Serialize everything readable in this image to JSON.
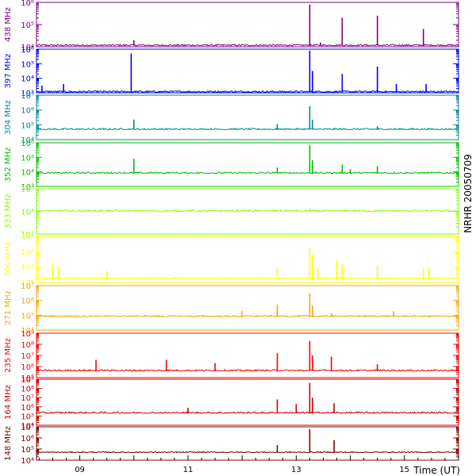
{
  "chart_data": {
    "type": "line",
    "side_label": "NRHR 20050709",
    "xlabel": "Time (UT)",
    "x_ticks": [
      "09",
      "11",
      "13",
      "15"
    ],
    "x_range_hours": [
      8.2,
      16.0
    ],
    "panels": [
      {
        "label": "438 MHz",
        "color": "#800080",
        "ylim_exp": [
          4,
          6
        ],
        "tick_labels": [
          "10⁴",
          "10⁵",
          "10⁶"
        ],
        "baseline_exp": 4.05,
        "spikes": [
          [
            13.25,
            5.9
          ],
          [
            13.85,
            5.3
          ],
          [
            14.5,
            5.4
          ],
          [
            15.35,
            4.8
          ],
          [
            10.0,
            4.3
          ],
          [
            13.45,
            4.2
          ]
        ]
      },
      {
        "label": "397 MHz",
        "color": "#0000ee",
        "ylim_exp": [
          3,
          6
        ],
        "tick_labels": [
          "10³",
          "10⁴",
          "10⁵",
          "10⁶"
        ],
        "baseline_exp": 3.05,
        "spikes": [
          [
            9.95,
            5.7
          ],
          [
            13.25,
            5.9
          ],
          [
            13.3,
            4.5
          ],
          [
            13.85,
            4.3
          ],
          [
            14.5,
            4.8
          ],
          [
            14.85,
            3.6
          ],
          [
            15.4,
            3.6
          ],
          [
            8.7,
            3.6
          ],
          [
            8.3,
            3.5
          ]
        ]
      },
      {
        "label": "304 MHz",
        "color": "#008b8b",
        "ylim_exp": [
          4,
          8
        ],
        "tick_labels": [
          "10⁴",
          "10⁵",
          "10⁶",
          "10⁷"
        ],
        "baseline_exp": 4.9,
        "spikes": [
          [
            13.25,
            7.0
          ],
          [
            10.0,
            5.8
          ],
          [
            13.3,
            5.8
          ],
          [
            12.65,
            5.4
          ],
          [
            14.5,
            5.2
          ]
        ]
      },
      {
        "label": "352 MHz",
        "color": "#00c000",
        "ylim_exp": [
          3,
          6
        ],
        "tick_labels": [
          "10³",
          "10⁴",
          "10⁵",
          "10⁶"
        ],
        "baseline_exp": 3.9,
        "spikes": [
          [
            13.25,
            5.85
          ],
          [
            10.0,
            4.9
          ],
          [
            13.3,
            4.8
          ],
          [
            13.85,
            4.5
          ],
          [
            14.5,
            4.4
          ],
          [
            12.65,
            4.3
          ],
          [
            14.0,
            4.2
          ]
        ]
      },
      {
        "label": "333 MHz",
        "color": "#7fff00",
        "ylim_exp": [
          3,
          5
        ],
        "tick_labels": [
          "10³",
          "10⁴",
          "10⁵"
        ],
        "baseline_exp": 4.0,
        "spikes": [
          [
            13.25,
            4.1
          ]
        ]
      },
      {
        "label": "300 MHz",
        "color": "#ffff00",
        "ylim_exp": [
          4,
          8
        ],
        "tick_labels": [
          "10⁴",
          "10⁵",
          "10⁶",
          "10⁷"
        ],
        "baseline_exp": 4.3,
        "spikes": [
          [
            13.25,
            7.0
          ],
          [
            13.3,
            6.4
          ],
          [
            13.4,
            5.3
          ],
          [
            13.75,
            5.9
          ],
          [
            13.85,
            5.6
          ],
          [
            12.65,
            5.3
          ],
          [
            14.5,
            5.5
          ],
          [
            15.35,
            5.2
          ],
          [
            15.45,
            5.3
          ],
          [
            8.5,
            5.6
          ],
          [
            8.6,
            5.4
          ],
          [
            9.5,
            5.0
          ]
        ]
      },
      {
        "label": "271 MHz",
        "color": "#f4a800",
        "ylim_exp": [
          4,
          8
        ],
        "tick_labels": [
          "10⁴",
          "10⁵",
          "10⁶",
          "10⁷"
        ],
        "baseline_exp": 5.2,
        "spikes": [
          [
            13.25,
            7.3
          ],
          [
            13.3,
            6.2
          ],
          [
            12.65,
            6.3
          ],
          [
            12.0,
            5.7
          ],
          [
            14.8,
            5.7
          ],
          [
            13.65,
            5.5
          ]
        ]
      },
      {
        "label": "235 MHz",
        "color": "#ff0000",
        "ylim_exp": [
          5,
          9
        ],
        "tick_labels": [
          "10⁵",
          "10⁶",
          "10⁷",
          "10⁸",
          "10⁹"
        ],
        "baseline_exp": 5.6,
        "spikes": [
          [
            13.25,
            8.3
          ],
          [
            12.65,
            7.2
          ],
          [
            13.3,
            7.0
          ],
          [
            13.65,
            6.9
          ],
          [
            9.3,
            6.6
          ],
          [
            10.6,
            6.6
          ],
          [
            11.5,
            6.3
          ],
          [
            14.5,
            6.2
          ]
        ]
      },
      {
        "label": "164 MHz",
        "color": "#cc0000",
        "ylim_exp": [
          4,
          9
        ],
        "tick_labels": [
          "10⁴",
          "10⁵",
          "10⁶",
          "10⁷",
          "10⁸",
          "10⁹"
        ],
        "baseline_exp": 5.3,
        "spikes": [
          [
            13.25,
            8.6
          ],
          [
            13.7,
            6.4
          ],
          [
            12.65,
            6.8
          ],
          [
            13.0,
            6.3
          ],
          [
            13.3,
            7.0
          ],
          [
            11.0,
            5.9
          ]
        ]
      },
      {
        "label": "148 MHz",
        "color": "#800000",
        "ylim_exp": [
          4,
          8
        ],
        "tick_labels": [
          "10⁴",
          "10⁵",
          "10⁶",
          "10⁷"
        ],
        "baseline_exp": 4.9,
        "spikes": [
          [
            13.25,
            7.7
          ],
          [
            13.7,
            6.4
          ],
          [
            12.65,
            5.8
          ],
          [
            10.55,
            5.0
          ]
        ]
      }
    ]
  }
}
